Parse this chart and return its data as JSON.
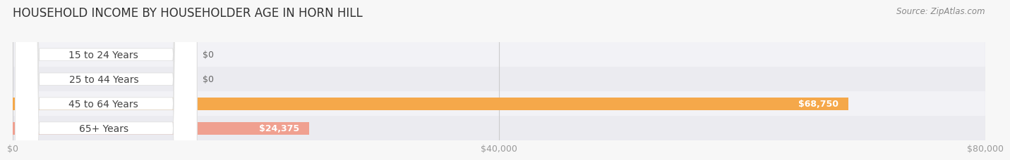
{
  "title": "HOUSEHOLD INCOME BY HOUSEHOLDER AGE IN HORN HILL",
  "source": "Source: ZipAtlas.com",
  "categories": [
    "15 to 24 Years",
    "25 to 44 Years",
    "45 to 64 Years",
    "65+ Years"
  ],
  "values": [
    0,
    0,
    68750,
    24375
  ],
  "bar_colors": [
    "#b0b0d8",
    "#f0a0bc",
    "#f5a84a",
    "#f0a090"
  ],
  "row_colors": [
    "#f0f0f5",
    "#ebebeb",
    "#f0f0f5",
    "#ebebeb"
  ],
  "xlim": [
    0,
    80000
  ],
  "xticks": [
    0,
    40000,
    80000
  ],
  "xtick_labels": [
    "$0",
    "$40,000",
    "$80,000"
  ],
  "fig_bg_color": "#f7f7f7",
  "title_fontsize": 12,
  "tick_fontsize": 9,
  "label_fontsize": 10,
  "value_fontsize": 9,
  "bar_height": 0.52,
  "figsize": [
    14.06,
    2.33
  ],
  "dpi": 100
}
